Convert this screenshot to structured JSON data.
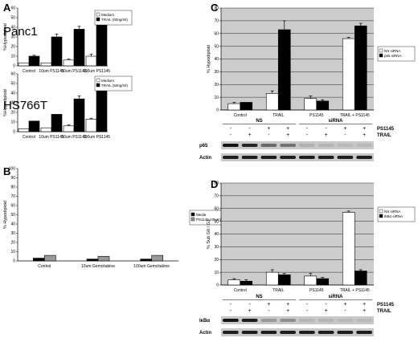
{
  "chart_data": [
    {
      "id": "A1",
      "type": "bar",
      "panel_letter": "A",
      "cell_label": "Panc1",
      "ylabel": "%Hypodiploid",
      "ylim": [
        0,
        60
      ],
      "yticks": [
        0,
        10,
        20,
        30,
        40,
        50,
        60
      ],
      "categories": [
        "Control",
        "10um PS1145",
        "50um PS1145",
        "100um PS1145"
      ],
      "series": [
        {
          "name": "Medium",
          "values": [
            3,
            3,
            6,
            10
          ],
          "errors": [
            0,
            0,
            1,
            2
          ],
          "color": "#ffffff"
        },
        {
          "name": "TRAIL (50ng/ml)",
          "values": [
            10,
            30,
            38,
            45
          ],
          "errors": [
            1,
            3,
            3,
            2
          ],
          "color": "#000000"
        }
      ],
      "legend_position": "top-right",
      "grid": false
    },
    {
      "id": "A2",
      "type": "bar",
      "cell_label": "HS766T",
      "ylabel": "%Hypodiploid",
      "ylim": [
        0,
        60
      ],
      "yticks": [
        0,
        10,
        20,
        30,
        40,
        50,
        60
      ],
      "categories": [
        "Control",
        "10um PS1145",
        "50um PS1145",
        "100um PS1145"
      ],
      "series": [
        {
          "name": "Medium",
          "values": [
            3,
            4,
            6,
            13
          ],
          "errors": [
            0,
            0,
            1,
            1
          ],
          "color": "#ffffff"
        },
        {
          "name": "TRAIL (50ng/ml)",
          "values": [
            11,
            18,
            34,
            45
          ],
          "errors": [
            0,
            0,
            3,
            3
          ],
          "color": "#000000"
        }
      ],
      "legend_position": "top-right",
      "grid": false
    },
    {
      "id": "B",
      "type": "bar",
      "panel_letter": "B",
      "ylabel": "% Hypodiploid",
      "ylim": [
        0,
        100
      ],
      "yticks": [
        0,
        10,
        20,
        30,
        40,
        50,
        60,
        70,
        80,
        90,
        100
      ],
      "categories": [
        "Control",
        "10um Gemcitabine",
        "100um Gemcitabine"
      ],
      "series": [
        {
          "name": "Media",
          "values": [
            3,
            2,
            2
          ],
          "errors": [
            0,
            0,
            0
          ],
          "color": "#000000"
        },
        {
          "name": "PS1145 (40um)",
          "values": [
            6,
            5,
            6
          ],
          "errors": [
            0,
            0,
            0
          ],
          "color": "#999999"
        }
      ],
      "legend_position": "right",
      "grid": false
    },
    {
      "id": "C",
      "type": "bar",
      "panel_letter": "C",
      "ylabel": "% Hypodiploid",
      "ylim": [
        0,
        80
      ],
      "yticks": [
        0,
        10,
        20,
        30,
        40,
        50,
        60,
        70,
        80
      ],
      "categories": [
        "Control",
        "TRAIL",
        "PS1145",
        "TRAIL + PS1145"
      ],
      "series": [
        {
          "name": "NS siRNA",
          "values": [
            5,
            13,
            9,
            56
          ],
          "errors": [
            1,
            2,
            2,
            1
          ],
          "color": "#ffffff"
        },
        {
          "name": "p65 siRNA",
          "values": [
            6,
            63,
            7,
            66
          ],
          "errors": [
            0,
            7,
            1,
            2
          ],
          "color": "#000000"
        }
      ],
      "legend_position": "right",
      "grid": true
    },
    {
      "id": "D",
      "type": "bar",
      "panel_letter": "D",
      "ylabel": "% Sub G0 / G1",
      "ylim": [
        0,
        80
      ],
      "yticks": [
        0,
        10,
        20,
        30,
        40,
        50,
        60,
        70,
        80
      ],
      "categories": [
        "Control",
        "TRAIL",
        "PS1145",
        "TRAIL + PS1145"
      ],
      "series": [
        {
          "name": "NS siRNA",
          "values": [
            4,
            10,
            7,
            57
          ],
          "errors": [
            1,
            2,
            2,
            1
          ],
          "color": "#ffffff"
        },
        {
          "name": "IkBα siRNA",
          "values": [
            3,
            8,
            5,
            11
          ],
          "errors": [
            1,
            1,
            1,
            1
          ],
          "color": "#000000"
        }
      ],
      "legend_position": "right",
      "grid": true
    }
  ],
  "blots": [
    {
      "id": "C",
      "group_labels": [
        "NS",
        "siRNA"
      ],
      "row_labels": [
        "PS1145",
        "TRAIL"
      ],
      "ps1145": [
        "-",
        "-",
        "+",
        "+",
        "-",
        "-",
        "+",
        "+"
      ],
      "trail": [
        "-",
        "+",
        "-",
        "+",
        "-",
        "+",
        "-",
        "+"
      ],
      "bands": [
        {
          "label": "p65",
          "intensities": [
            0.95,
            0.85,
            0.5,
            0.45,
            0.12,
            0.1,
            0.08,
            0.08
          ]
        },
        {
          "label": "Actin",
          "intensities": [
            0.9,
            0.9,
            0.9,
            0.9,
            0.9,
            0.9,
            0.9,
            0.9
          ]
        }
      ]
    },
    {
      "id": "D",
      "group_labels": [
        "NS",
        "siRNA"
      ],
      "row_labels": [
        "PS1145",
        "TRAIL"
      ],
      "ps1145": [
        "-",
        "-",
        "+",
        "+",
        "-",
        "-",
        "+",
        "+"
      ],
      "trail": [
        "-",
        "+",
        "-",
        "+",
        "-",
        "+",
        "-",
        "+"
      ],
      "bands": [
        {
          "label": "IκBα",
          "intensities": [
            0.95,
            0.9,
            0.25,
            0.3,
            0.1,
            0.1,
            0.08,
            0.08
          ]
        },
        {
          "label": "Actin",
          "intensities": [
            0.9,
            0.9,
            0.9,
            0.9,
            0.9,
            0.9,
            0.9,
            0.9
          ]
        }
      ]
    }
  ]
}
